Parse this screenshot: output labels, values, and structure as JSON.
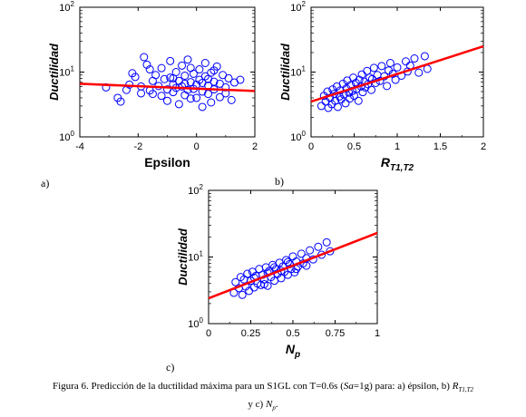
{
  "panels": [
    {
      "letter": "a)",
      "chart_data": {
        "type": "scatter",
        "ylabel": "Ductilidad",
        "xlabel": "Epsilon",
        "xlim": [
          -4,
          2
        ],
        "ylim": [
          1,
          100
        ],
        "yscale": "log",
        "xticks": [
          "-4",
          "-2",
          "0",
          "2"
        ],
        "yticks": [
          "10^0",
          "10^1",
          "10^2"
        ],
        "marker_color": "#0000ff",
        "fit_color": "#ff0000",
        "fit_line": [
          [
            -4,
            6.6
          ],
          [
            2,
            5.1
          ]
        ],
        "points": [
          [
            -3.1,
            5.8
          ],
          [
            -2.7,
            4.0
          ],
          [
            -2.6,
            3.5
          ],
          [
            -2.3,
            6.4
          ],
          [
            -2.2,
            9.6
          ],
          [
            -2.1,
            8.4
          ],
          [
            -1.9,
            6.0
          ],
          [
            -1.8,
            17.0
          ],
          [
            -1.7,
            13.0
          ],
          [
            -1.6,
            5.2
          ],
          [
            -1.5,
            7.3
          ],
          [
            -1.5,
            4.6
          ],
          [
            -1.4,
            9.0
          ],
          [
            -1.3,
            6.1
          ],
          [
            -1.2,
            4.3
          ],
          [
            -1.2,
            11.5
          ],
          [
            -1.1,
            7.8
          ],
          [
            -1.0,
            5.4
          ],
          [
            -1.0,
            3.6
          ],
          [
            -0.9,
            8.2
          ],
          [
            -0.9,
            14.8
          ],
          [
            -0.8,
            6.5
          ],
          [
            -0.8,
            4.9
          ],
          [
            -0.7,
            10.0
          ],
          [
            -0.7,
            5.7
          ],
          [
            -0.6,
            3.2
          ],
          [
            -0.6,
            7.3
          ],
          [
            -0.5,
            12.6
          ],
          [
            -0.5,
            6.0
          ],
          [
            -0.4,
            4.4
          ],
          [
            -0.4,
            8.8
          ],
          [
            -0.3,
            5.3
          ],
          [
            -0.3,
            15.6
          ],
          [
            -0.2,
            7.0
          ],
          [
            -0.2,
            3.9
          ],
          [
            -0.1,
            9.4
          ],
          [
            -0.1,
            5.5
          ],
          [
            0.0,
            6.4
          ],
          [
            0.0,
            4.0
          ],
          [
            0.1,
            11.0
          ],
          [
            0.1,
            7.6
          ],
          [
            0.2,
            2.9
          ],
          [
            0.2,
            5.0
          ],
          [
            0.3,
            8.6
          ],
          [
            0.3,
            13.8
          ],
          [
            0.4,
            6.2
          ],
          [
            0.4,
            4.6
          ],
          [
            0.5,
            9.8
          ],
          [
            0.5,
            3.4
          ],
          [
            0.6,
            7.1
          ],
          [
            0.6,
            5.4
          ],
          [
            0.7,
            12.2
          ],
          [
            0.8,
            6.6
          ],
          [
            0.8,
            4.1
          ],
          [
            0.9,
            9.0
          ],
          [
            1.0,
            5.8
          ],
          [
            1.1,
            8.0
          ],
          [
            1.2,
            3.7
          ],
          [
            1.3,
            6.9
          ],
          [
            1.5,
            7.6
          ],
          [
            -1.9,
            4.7
          ],
          [
            -0.4,
            6.6
          ],
          [
            0.2,
            6.8
          ],
          [
            -0.8,
            8.0
          ],
          [
            0.6,
            10.6
          ],
          [
            -2.4,
            5.3
          ],
          [
            -1.6,
            11.0
          ],
          [
            1.0,
            4.7
          ],
          [
            -0.2,
            11.6
          ],
          [
            0.4,
            7.8
          ]
        ]
      }
    },
    {
      "letter": "b)",
      "chart_data": {
        "type": "scatter",
        "ylabel": "Ductilidad",
        "xlabel_main": "R",
        "xlabel_sub": "T1,T2",
        "xlim": [
          0,
          2
        ],
        "ylim": [
          1,
          100
        ],
        "yscale": "log",
        "xticks": [
          "0",
          "0.5",
          "1",
          "1.5",
          "2"
        ],
        "yticks": [
          "10^0",
          "10^1",
          "10^2"
        ],
        "marker_color": "#0000ff",
        "fit_color": "#ff0000",
        "fit_line": [
          [
            0,
            3.5
          ],
          [
            2,
            25
          ]
        ],
        "points": [
          [
            0.12,
            3.0
          ],
          [
            0.15,
            4.3
          ],
          [
            0.17,
            3.5
          ],
          [
            0.19,
            5.0
          ],
          [
            0.2,
            2.8
          ],
          [
            0.22,
            4.0
          ],
          [
            0.24,
            3.2
          ],
          [
            0.25,
            5.4
          ],
          [
            0.27,
            4.6
          ],
          [
            0.28,
            3.6
          ],
          [
            0.3,
            6.0
          ],
          [
            0.31,
            2.9
          ],
          [
            0.33,
            4.2
          ],
          [
            0.34,
            5.2
          ],
          [
            0.35,
            3.8
          ],
          [
            0.37,
            6.6
          ],
          [
            0.38,
            4.5
          ],
          [
            0.4,
            3.3
          ],
          [
            0.41,
            5.6
          ],
          [
            0.42,
            7.4
          ],
          [
            0.44,
            4.8
          ],
          [
            0.45,
            3.9
          ],
          [
            0.46,
            6.3
          ],
          [
            0.48,
            5.1
          ],
          [
            0.49,
            8.2
          ],
          [
            0.5,
            4.3
          ],
          [
            0.52,
            6.8
          ],
          [
            0.53,
            5.5
          ],
          [
            0.55,
            3.6
          ],
          [
            0.56,
            7.6
          ],
          [
            0.58,
            6.0
          ],
          [
            0.59,
            9.2
          ],
          [
            0.6,
            4.9
          ],
          [
            0.62,
            7.1
          ],
          [
            0.63,
            5.8
          ],
          [
            0.65,
            10.4
          ],
          [
            0.66,
            6.5
          ],
          [
            0.68,
            8.2
          ],
          [
            0.7,
            5.3
          ],
          [
            0.71,
            7.8
          ],
          [
            0.73,
            11.6
          ],
          [
            0.75,
            6.8
          ],
          [
            0.77,
            9.0
          ],
          [
            0.8,
            7.3
          ],
          [
            0.82,
            12.4
          ],
          [
            0.85,
            8.6
          ],
          [
            0.88,
            6.1
          ],
          [
            0.9,
            10.6
          ],
          [
            0.92,
            13.8
          ],
          [
            0.95,
            9.4
          ],
          [
            0.98,
            7.6
          ],
          [
            1.0,
            11.8
          ],
          [
            1.05,
            8.8
          ],
          [
            1.1,
            14.6
          ],
          [
            1.12,
            10.2
          ],
          [
            1.15,
            12.6
          ],
          [
            1.2,
            16.2
          ],
          [
            1.25,
            9.8
          ],
          [
            1.32,
            17.6
          ],
          [
            1.35,
            11.2
          ]
        ]
      }
    },
    {
      "letter": "c)",
      "chart_data": {
        "type": "scatter",
        "ylabel": "Ductilidad",
        "xlabel_main": "N",
        "xlabel_sub": "p",
        "xlim": [
          0,
          1
        ],
        "ylim": [
          1,
          100
        ],
        "yscale": "log",
        "xticks": [
          "0",
          "0.25",
          "0.5",
          "0.75",
          "1"
        ],
        "yticks": [
          "10^0",
          "10^1",
          "10^2"
        ],
        "marker_color": "#0000ff",
        "fit_color": "#ff0000",
        "fit_line": [
          [
            0,
            2.4
          ],
          [
            1,
            23
          ]
        ],
        "points": [
          [
            0.15,
            2.9
          ],
          [
            0.16,
            4.2
          ],
          [
            0.18,
            3.4
          ],
          [
            0.19,
            5.0
          ],
          [
            0.2,
            2.7
          ],
          [
            0.21,
            4.6
          ],
          [
            0.22,
            3.6
          ],
          [
            0.23,
            5.6
          ],
          [
            0.24,
            3.1
          ],
          [
            0.25,
            4.4
          ],
          [
            0.26,
            6.0
          ],
          [
            0.27,
            3.5
          ],
          [
            0.28,
            5.2
          ],
          [
            0.29,
            4.0
          ],
          [
            0.3,
            6.6
          ],
          [
            0.31,
            3.8
          ],
          [
            0.32,
            5.4
          ],
          [
            0.33,
            4.6
          ],
          [
            0.34,
            7.0
          ],
          [
            0.35,
            3.7
          ],
          [
            0.36,
            6.2
          ],
          [
            0.37,
            5.0
          ],
          [
            0.38,
            7.6
          ],
          [
            0.39,
            4.4
          ],
          [
            0.4,
            6.6
          ],
          [
            0.41,
            5.6
          ],
          [
            0.42,
            8.2
          ],
          [
            0.43,
            4.8
          ],
          [
            0.44,
            7.2
          ],
          [
            0.45,
            6.0
          ],
          [
            0.46,
            9.0
          ],
          [
            0.47,
            5.4
          ],
          [
            0.48,
            7.8
          ],
          [
            0.49,
            6.6
          ],
          [
            0.5,
            10.2
          ],
          [
            0.51,
            5.9
          ],
          [
            0.52,
            8.6
          ],
          [
            0.53,
            7.2
          ],
          [
            0.55,
            11.2
          ],
          [
            0.56,
            8.0
          ],
          [
            0.58,
            9.6
          ],
          [
            0.6,
            12.6
          ],
          [
            0.62,
            9.2
          ],
          [
            0.65,
            14.2
          ],
          [
            0.67,
            10.8
          ],
          [
            0.7,
            16.6
          ],
          [
            0.72,
            12.2
          ],
          [
            0.27,
            4.9
          ],
          [
            0.35,
            5.8
          ],
          [
            0.43,
            6.2
          ],
          [
            0.52,
            6.6
          ],
          [
            0.47,
            8.4
          ],
          [
            0.39,
            7.0
          ],
          [
            0.33,
            3.9
          ],
          [
            0.58,
            7.4
          ]
        ]
      }
    }
  ],
  "caption": {
    "line1_prefix": "Figura 6. Predicción de la ductilidad máxima para un S1GL con T=0.6s (",
    "sa": "Sa",
    "line1_mid": "=1g) para: a) épsilon, b) ",
    "r": "R",
    "r_sub": "T1,T2",
    "line2_prefix": "y c) ",
    "np": "N",
    "np_sub": "p",
    "line2_suffix": "."
  }
}
